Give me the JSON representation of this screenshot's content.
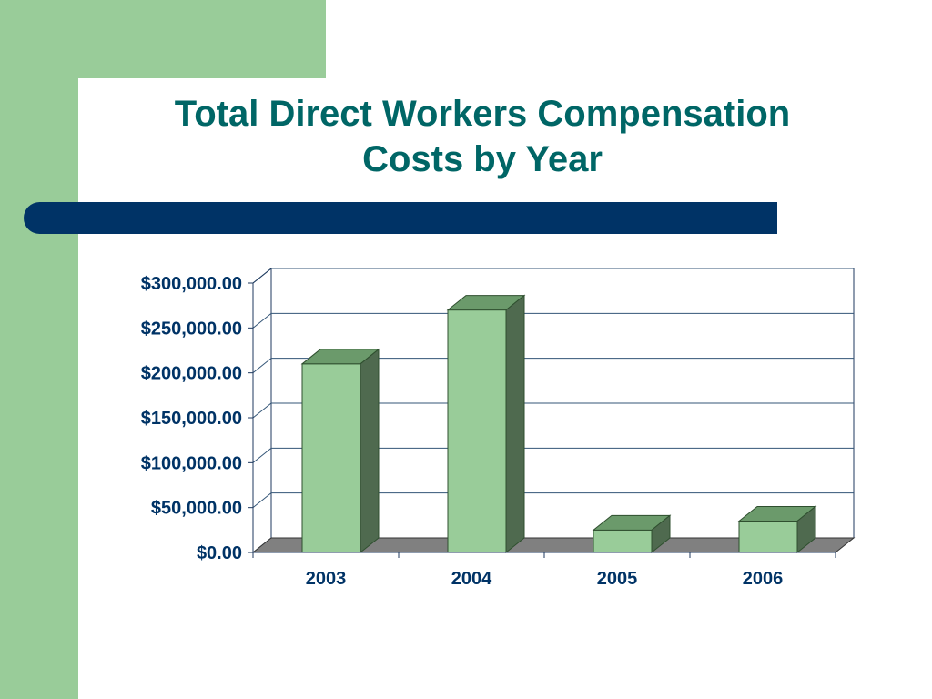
{
  "slide": {
    "title_line1": "Total Direct Workers Compensation",
    "title_line2": "Costs by Year"
  },
  "colors": {
    "background_green": "#99cc99",
    "title_teal": "#006666",
    "bar_navy": "#003366",
    "bar_front": "#99cc99",
    "bar_top": "#6b9a6b",
    "bar_side": "#4f6a4f",
    "floor": "#808080",
    "axis_text": "#003366"
  },
  "chart_data": {
    "type": "bar",
    "categories": [
      "2003",
      "2004",
      "2005",
      "2006"
    ],
    "values": [
      210000,
      270000,
      25000,
      35000
    ],
    "ylim": [
      0,
      300000
    ],
    "yticks": [
      0,
      50000,
      100000,
      150000,
      200000,
      250000,
      300000
    ],
    "ytick_labels": [
      "$0.00",
      "$50,000.00",
      "$100,000.00",
      "$150,000.00",
      "$200,000.00",
      "$250,000.00",
      "$300,000.00"
    ],
    "title": "",
    "xlabel": "",
    "ylabel": "",
    "grid": true,
    "legend": "none"
  }
}
